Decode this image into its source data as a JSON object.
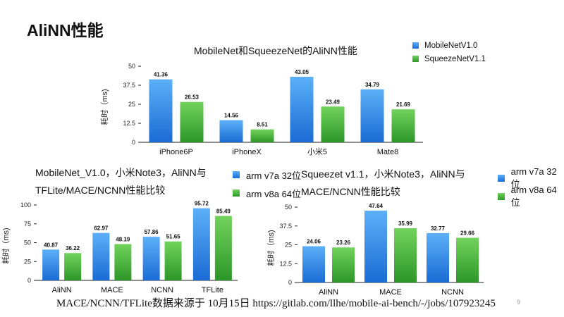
{
  "slide": {
    "title": "AliNN性能",
    "footer": "MACE/NCNN/TFLite数据来源于 10月15日 https://gitlab.com/llhe/mobile-ai-bench/-/jobs/107923245",
    "page_number": "9"
  },
  "colors": {
    "series1": "#2f85e8",
    "series2": "#3cb33a"
  },
  "chart_data": [
    {
      "type": "bar",
      "title": "MobileNet和SqueezeNet的AliNN性能",
      "ylabel": "耗时（ms)",
      "categories": [
        "iPhone6P",
        "iPhoneX",
        "小米5",
        "Mate8"
      ],
      "series": [
        {
          "name": "MobileNetV1.0",
          "values": [
            41.36,
            14.56,
            43.05,
            34.79
          ],
          "labels": [
            "41.36",
            "14.56",
            "43.05",
            "34.79"
          ]
        },
        {
          "name": "SqueezeNetV1.1",
          "values": [
            26.53,
            8.51,
            23.49,
            21.69
          ],
          "labels": [
            "26.53",
            "8.51",
            "23.49",
            "21.69"
          ]
        }
      ],
      "ylim": [
        0,
        50
      ],
      "yticks": [
        "0",
        "12.5",
        "25",
        "37.5",
        "50"
      ],
      "grid": false,
      "legend": "top-right"
    },
    {
      "type": "bar",
      "title_lines": [
        "MobileNet_V1.0，小米Note3，AliNN与",
        "TFLite/MACE/NCNN性能比较"
      ],
      "ylabel": "耗时（ms)",
      "categories": [
        "AliNN",
        "MACE",
        "NCNN",
        "TFLite"
      ],
      "series": [
        {
          "name": "arm v7a 32位",
          "values": [
            40.87,
            62.97,
            57.86,
            95.72
          ],
          "labels": [
            "40.87",
            "62.97",
            "57.86",
            "95.72"
          ]
        },
        {
          "name": "arm v8a 64位",
          "values": [
            36.22,
            48.19,
            51.65,
            85.49
          ],
          "labels": [
            "36.22",
            "48.19",
            "51.65",
            "85.49"
          ]
        }
      ],
      "ylim": [
        0,
        100
      ],
      "yticks": [
        "0",
        "25",
        "50",
        "75",
        "100"
      ],
      "grid": false,
      "legend": "top-right"
    },
    {
      "type": "bar",
      "title_lines": [
        "Squeezet v1.1，小米Note3，AliNN与",
        "MACE/NCNN性能比较"
      ],
      "ylabel": "耗时（ms)",
      "categories": [
        "AliNN",
        "MACE",
        "NCNN"
      ],
      "series": [
        {
          "name": "arm v7a 32位",
          "values": [
            24.06,
            47.64,
            32.77
          ],
          "labels": [
            "24.06",
            "47.64",
            "32.77"
          ]
        },
        {
          "name": "arm v8a 64位",
          "values": [
            23.26,
            35.99,
            29.66
          ],
          "labels": [
            "23.26",
            "35.99",
            "29.66"
          ]
        }
      ],
      "ylim": [
        0,
        50
      ],
      "yticks": [
        "0",
        "12.5",
        "25",
        "37.5",
        "50"
      ],
      "grid": false,
      "legend": "top-right"
    }
  ]
}
